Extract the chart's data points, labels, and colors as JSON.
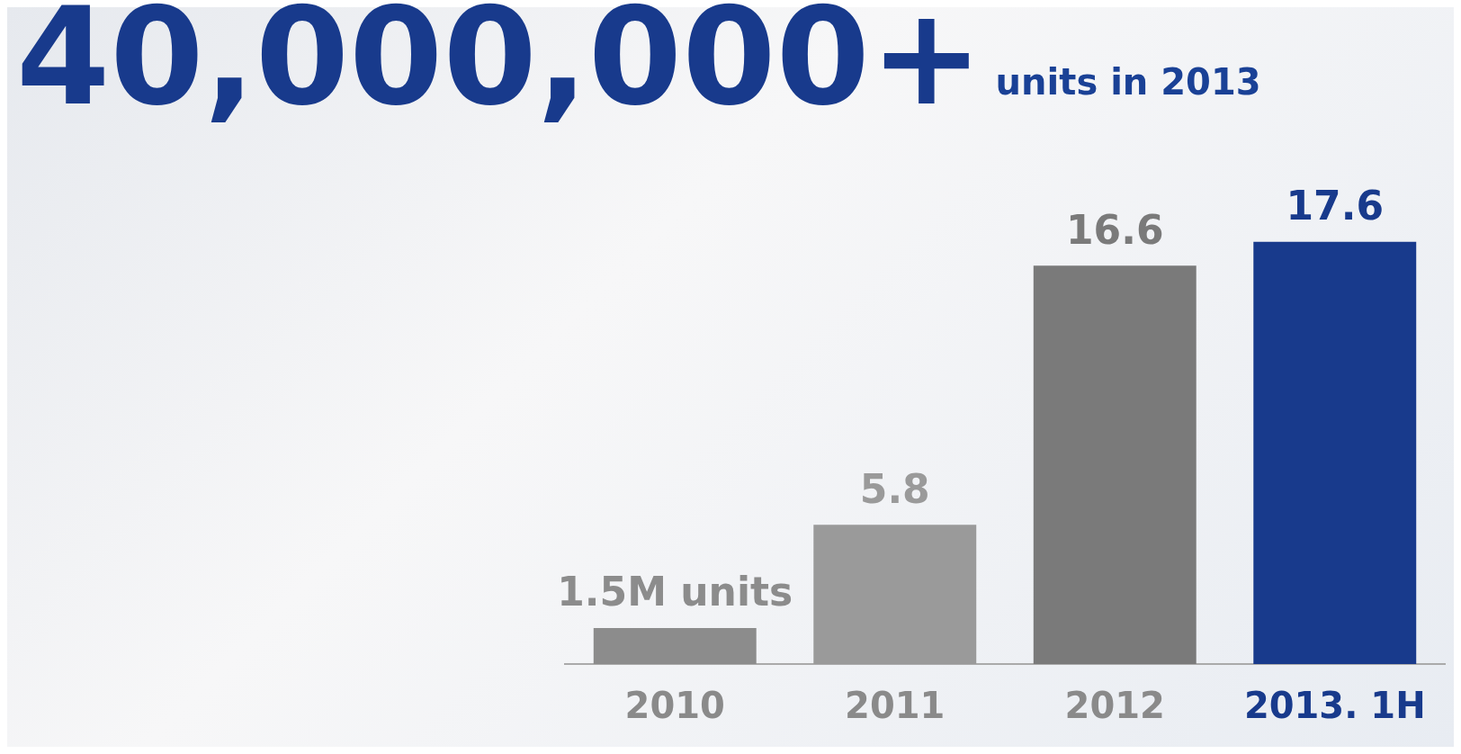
{
  "chart_data": {
    "type": "bar",
    "title": "40,000,000+",
    "subtitle": "units in 2013",
    "categories": [
      "2010",
      "2011",
      "2012",
      "2013. 1H"
    ],
    "values": [
      1.5,
      5.8,
      16.6,
      17.6
    ],
    "colors": [
      "#8c8c8c",
      "#9a9a9a",
      "#7a7a7a",
      "#183a8c"
    ],
    "value_labels": [
      "1.5M units",
      "5.8",
      "16.6",
      "17.6"
    ]
  }
}
